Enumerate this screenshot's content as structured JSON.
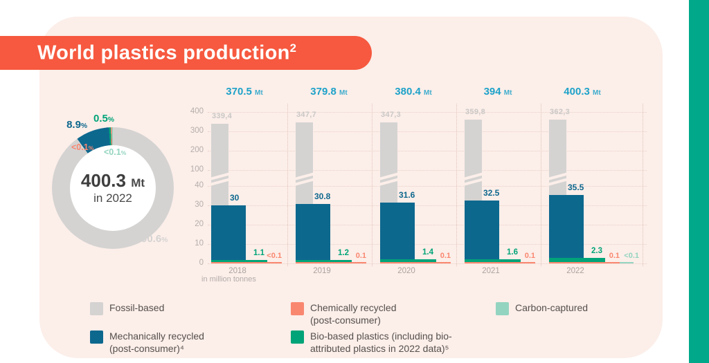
{
  "page": {
    "title": "World plastics production",
    "title_sup": "2"
  },
  "colors": {
    "banner": "#f6593f",
    "panel": "#fceee9",
    "accent_strip": "#02a88a",
    "fossil": "#d4d3d2",
    "mechanical": "#0d688e",
    "bio": "#00a478",
    "chemical": "#f9876f",
    "carbon": "#93d4c0",
    "total_label": "#1ea2c9"
  },
  "donut": {
    "center_value": "400.3",
    "center_unit": "Mt",
    "center_sub": "in 2022",
    "segments": [
      {
        "key": "fossil",
        "name": "fossil-based",
        "pct": 90.6,
        "label": "90.6",
        "suffix": "%"
      },
      {
        "key": "mechanical",
        "name": "mechanically-recycled",
        "pct": 8.9,
        "label": "8.9",
        "suffix": "%"
      },
      {
        "key": "bio",
        "name": "bio-based",
        "pct": 0.5,
        "label": "0.5",
        "suffix": "%"
      },
      {
        "key": "chemical",
        "name": "chemically-recycled",
        "pct": 0.1,
        "label": "<0.1",
        "suffix": "%"
      },
      {
        "key": "carbon",
        "name": "carbon-captured",
        "pct": 0.1,
        "label": "<0.1",
        "suffix": "%"
      }
    ]
  },
  "chart_data": {
    "type": "bar",
    "title": "World plastics production",
    "unit_note": "in million tonnes",
    "y_ticks": [
      400,
      300,
      200,
      100,
      40,
      30,
      20,
      10,
      0
    ],
    "axis_break_between": [
      40,
      100
    ],
    "categories": [
      "2018",
      "2019",
      "2020",
      "2021",
      "2022"
    ],
    "totals": [
      "370.5",
      "379.8",
      "380.4",
      "394",
      "400.3"
    ],
    "totals_unit": "Mt",
    "series": [
      {
        "key": "fossil",
        "name": "Fossil-based",
        "values": [
          339.4,
          347.7,
          347.3,
          359.8,
          362.3
        ],
        "value_labels": [
          "339,4",
          "347,7",
          "347,3",
          "359,8",
          "362,3"
        ],
        "broken_bar": true
      },
      {
        "key": "mechanical",
        "name": "Mechanically recycled (post-consumer)",
        "values": [
          30,
          30.8,
          31.6,
          32.5,
          35.5
        ],
        "value_labels": [
          "30",
          "30.8",
          "31.6",
          "32.5",
          "35.5"
        ]
      },
      {
        "key": "bio",
        "name": "Bio-based plastics (including bio-attributed plastics in 2022 data)",
        "values": [
          1.1,
          1.2,
          1.4,
          1.6,
          2.3
        ],
        "value_labels": [
          "1.1",
          "1.2",
          "1.4",
          "1.6",
          "2.3"
        ]
      },
      {
        "key": "chemical",
        "name": "Chemically recycled (post-consumer)",
        "values": [
          0.1,
          0.1,
          0.1,
          0.1,
          0.1
        ],
        "value_labels": [
          "<0.1",
          "0.1",
          "0.1",
          "0.1",
          "0.1"
        ]
      },
      {
        "key": "carbon",
        "name": "Carbon-captured",
        "values": [
          null,
          null,
          null,
          null,
          0.1
        ],
        "value_labels": [
          null,
          null,
          null,
          null,
          "<0.1"
        ]
      }
    ]
  },
  "legend": {
    "items": [
      {
        "key": "fossil",
        "lines": [
          "Fossil-based"
        ]
      },
      {
        "key": "chemical",
        "lines": [
          "Chemically recycled",
          "(post-consumer)"
        ]
      },
      {
        "key": "carbon",
        "lines": [
          "Carbon-captured"
        ]
      },
      {
        "key": "mechanical",
        "lines": [
          "Mechanically recycled",
          "(post-consumer)⁴"
        ]
      },
      {
        "key": "bio",
        "lines": [
          "Bio-based plastics (including bio-",
          "attributed plastics in 2022 data)⁵"
        ]
      }
    ]
  }
}
